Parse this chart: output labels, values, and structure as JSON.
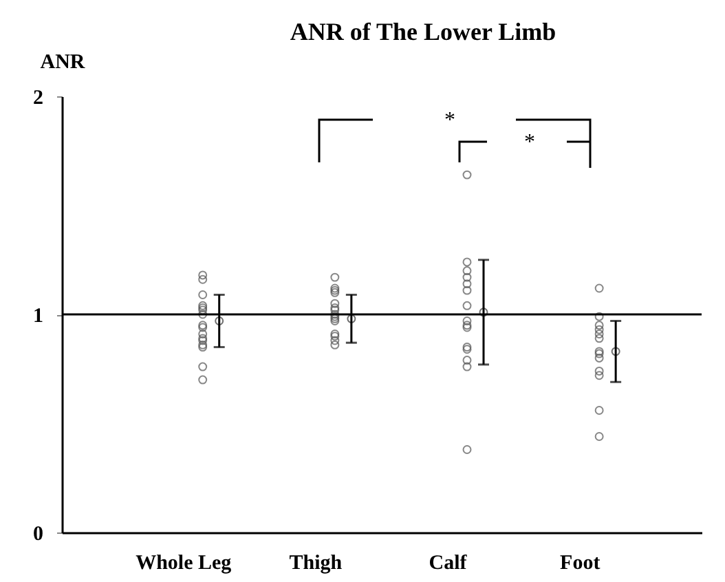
{
  "chart_data": {
    "type": "scatter",
    "title": "ANR of The Lower Limb",
    "ylabel": "ANR",
    "categories": [
      "Whole Leg",
      "Thigh",
      "Calf",
      "Foot"
    ],
    "series": [
      {
        "color": "#555555",
        "x": [
          "Whole Leg",
          "Whole Leg",
          "Whole Leg",
          "Whole Leg",
          "Whole Leg",
          "Whole Leg",
          "Whole Leg",
          "Whole Leg",
          "Whole Leg",
          "Whole Leg",
          "Whole Leg",
          "Whole Leg",
          "Whole Leg",
          "Whole Leg",
          "Whole Leg",
          "Whole Leg",
          "Thigh",
          "Thigh",
          "Thigh",
          "Thigh",
          "Thigh",
          "Thigh",
          "Thigh",
          "Thigh",
          "Thigh",
          "Thigh",
          "Thigh",
          "Thigh",
          "Thigh",
          "Thigh",
          "Thigh",
          "Calf",
          "Calf",
          "Calf",
          "Calf",
          "Calf",
          "Calf",
          "Calf",
          "Calf",
          "Calf",
          "Calf",
          "Calf",
          "Calf",
          "Calf",
          "Calf",
          "Calf",
          "Foot",
          "Foot",
          "Foot",
          "Foot",
          "Foot",
          "Foot",
          "Foot",
          "Foot",
          "Foot",
          "Foot",
          "Foot",
          "Foot",
          "Foot"
        ],
        "values": [
          1.18,
          1.16,
          1.09,
          1.04,
          1.03,
          1.02,
          1.0,
          0.95,
          0.94,
          0.91,
          0.89,
          0.88,
          0.86,
          0.85,
          0.76,
          0.7,
          1.17,
          1.12,
          1.11,
          1.1,
          1.05,
          1.03,
          1.02,
          1.0,
          0.99,
          0.98,
          0.97,
          0.91,
          0.9,
          0.88,
          0.86,
          1.64,
          1.24,
          1.2,
          1.17,
          1.14,
          1.11,
          1.04,
          0.97,
          0.95,
          0.94,
          0.85,
          0.84,
          0.79,
          0.76,
          0.38,
          1.12,
          0.99,
          0.95,
          0.93,
          0.91,
          0.89,
          0.83,
          0.82,
          0.8,
          0.74,
          0.72,
          0.56,
          0.44
        ]
      },
      {
        "color": "#333333",
        "x": [
          "Whole Leg",
          "Thigh",
          "Calf",
          "Foot"
        ],
        "values": [
          0.97,
          0.98,
          1.01,
          0.83
        ],
        "errors": [
          0.12,
          0.11,
          0.24,
          0.14
        ]
      }
    ],
    "ylim": [
      0,
      2
    ],
    "yticks": [
      0,
      1,
      2
    ],
    "marker": "circle",
    "ref_lines": [
      {
        "axis": "y",
        "value": 1,
        "color": "#000000"
      }
    ],
    "annotations": [
      "*",
      "*"
    ]
  }
}
